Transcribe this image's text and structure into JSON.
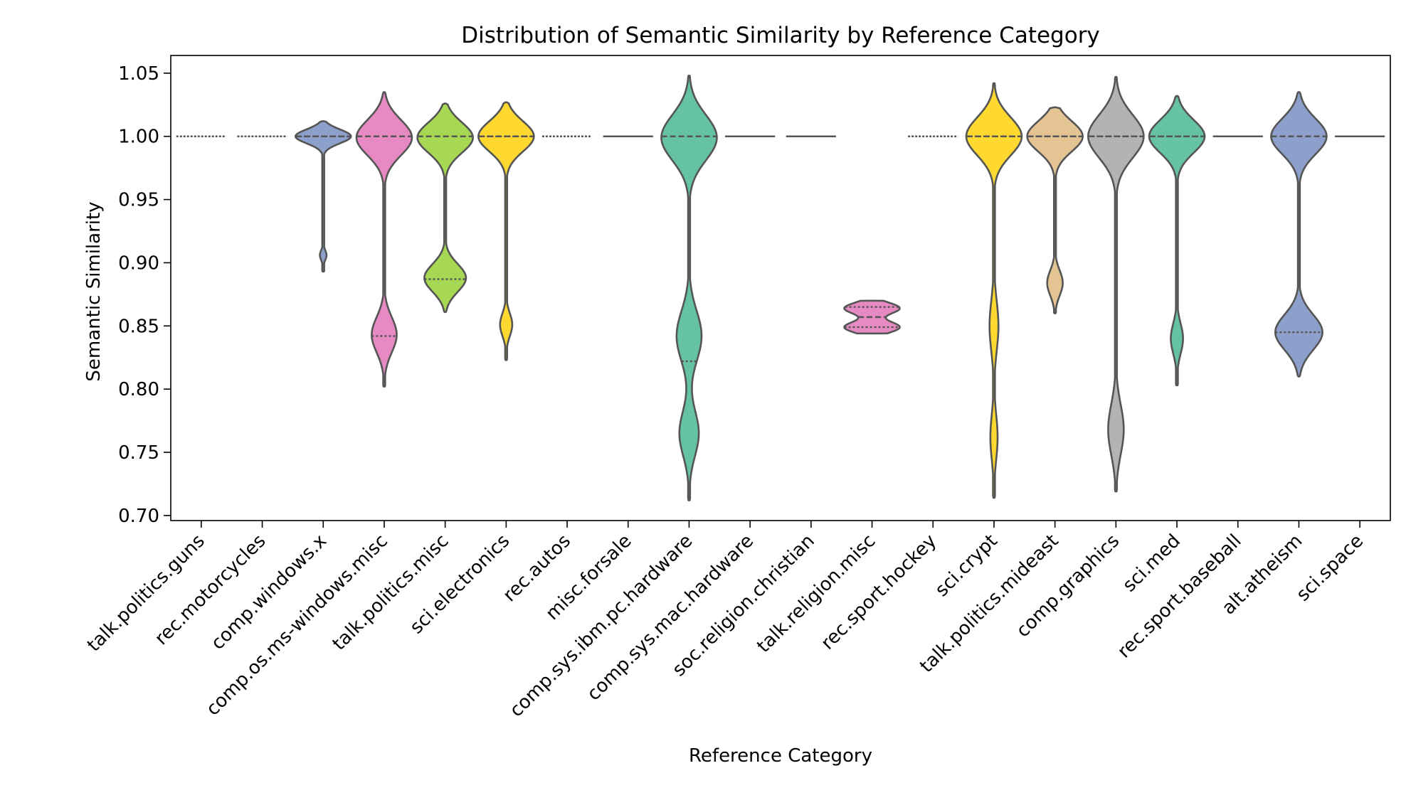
{
  "chart_data": {
    "type": "violin",
    "title": "Distribution of Semantic Similarity by Reference Category",
    "xlabel": "Reference Category",
    "ylabel": "Semantic Similarity",
    "ylim": [
      0.696,
      1.064
    ],
    "yticks": [
      "0.70",
      "0.75",
      "0.80",
      "0.85",
      "0.90",
      "0.95",
      "1.00",
      "1.05"
    ],
    "grid": false,
    "categories": [
      "talk.politics.guns",
      "rec.motorcycles",
      "comp.windows.x",
      "comp.os.ms-windows.misc",
      "talk.politics.misc",
      "sci.electronics",
      "rec.autos",
      "misc.forsale",
      "comp.sys.ibm.pc.hardware",
      "comp.sys.mac.hardware",
      "soc.religion.christian",
      "talk.religion.misc",
      "rec.sport.hockey",
      "sci.crypt",
      "talk.politics.mideast",
      "comp.graphics",
      "sci.med",
      "rec.sport.baseball",
      "alt.atheism",
      "sci.space"
    ],
    "colors": [
      "#66c2a5",
      "#fc8d62",
      "#8da0cb",
      "#e78ac3",
      "#a6d854",
      "#ffd92f",
      "#e5c494",
      "#b3b3b3",
      "#66c2a5",
      "#fc8d62",
      "#8da0cb",
      "#e78ac3",
      "#a6d854",
      "#ffd92f",
      "#e5c494",
      "#b3b3b3",
      "#66c2a5",
      "#fc8d62",
      "#8da0cb",
      "#e78ac3"
    ],
    "edge_color": "#555555",
    "distributions": [
      {
        "min": 1.0,
        "max": 1.0,
        "median": 1.0,
        "q1": 1.0,
        "q3": 1.0,
        "degenerate": true,
        "dotted": true
      },
      {
        "min": 1.0,
        "max": 1.0,
        "median": 1.0,
        "q1": 1.0,
        "q3": 1.0,
        "degenerate": true,
        "dotted": true
      },
      {
        "min": 0.893,
        "max": 1.012,
        "median": 1.0,
        "q1": 1.0,
        "q3": 1.0,
        "modes": [
          [
            1.0,
            1.0,
            0.0055
          ],
          [
            0.906,
            0.12,
            0.004
          ]
        ]
      },
      {
        "min": 0.802,
        "max": 1.035,
        "median": 1.0,
        "q1": 0.842,
        "q3": 1.0,
        "modes": [
          [
            0.999,
            1.0,
            0.014
          ],
          [
            0.843,
            0.45,
            0.014
          ]
        ]
      },
      {
        "min": 0.861,
        "max": 1.026,
        "median": 1.0,
        "q1": 0.887,
        "q3": 1.0,
        "modes": [
          [
            0.999,
            1.0,
            0.012
          ],
          [
            0.888,
            0.75,
            0.011
          ]
        ]
      },
      {
        "min": 0.823,
        "max": 1.027,
        "median": 1.0,
        "q1": 1.0,
        "q3": 1.0,
        "modes": [
          [
            1.0,
            1.0,
            0.012
          ],
          [
            0.851,
            0.22,
            0.009
          ]
        ]
      },
      {
        "min": 1.0,
        "max": 1.0,
        "median": 1.0,
        "q1": 1.0,
        "q3": 1.0,
        "degenerate": true,
        "dotted": true
      },
      {
        "min": 1.0,
        "max": 1.0,
        "median": 1.0,
        "q1": 1.0,
        "q3": 1.0,
        "degenerate": true
      },
      {
        "min": 0.712,
        "max": 1.048,
        "median": 1.0,
        "q1": 0.822,
        "q3": 1.0,
        "modes": [
          [
            0.999,
            1.0,
            0.018
          ],
          [
            0.842,
            0.45,
            0.02
          ],
          [
            0.765,
            0.35,
            0.018
          ]
        ]
      },
      {
        "min": 1.0,
        "max": 1.0,
        "median": 1.0,
        "q1": 1.0,
        "q3": 1.0,
        "degenerate": true
      },
      {
        "min": 1.0,
        "max": 1.0,
        "median": 1.0,
        "q1": 1.0,
        "q3": 1.0,
        "degenerate": true
      },
      {
        "min": 0.844,
        "max": 0.87,
        "median": 0.857,
        "q1": 0.849,
        "q3": 0.865,
        "modes": [
          [
            0.864,
            1.0,
            0.0045
          ],
          [
            0.849,
            1.0,
            0.0045
          ]
        ]
      },
      {
        "min": 1.0,
        "max": 1.0,
        "median": 1.0,
        "q1": 1.0,
        "q3": 1.0,
        "degenerate": true,
        "dotted": true
      },
      {
        "min": 0.714,
        "max": 1.042,
        "median": 1.0,
        "q1": 1.0,
        "q3": 1.0,
        "modes": [
          [
            1.0,
            1.0,
            0.015
          ],
          [
            0.85,
            0.16,
            0.02
          ],
          [
            0.762,
            0.13,
            0.018
          ]
        ]
      },
      {
        "min": 0.86,
        "max": 1.023,
        "median": 1.0,
        "q1": 1.0,
        "q3": 1.0,
        "modes": [
          [
            1.0,
            1.0,
            0.012
          ],
          [
            0.884,
            0.28,
            0.01
          ]
        ]
      },
      {
        "min": 0.719,
        "max": 1.047,
        "median": 1.0,
        "q1": 1.0,
        "q3": 1.0,
        "modes": [
          [
            1.0,
            1.0,
            0.017
          ],
          [
            0.768,
            0.28,
            0.02
          ]
        ]
      },
      {
        "min": 0.803,
        "max": 1.032,
        "median": 1.0,
        "q1": 1.0,
        "q3": 1.0,
        "modes": [
          [
            1.0,
            1.0,
            0.013
          ],
          [
            0.84,
            0.22,
            0.012
          ]
        ]
      },
      {
        "min": 1.0,
        "max": 1.0,
        "median": 1.0,
        "q1": 1.0,
        "q3": 1.0,
        "degenerate": true
      },
      {
        "min": 0.81,
        "max": 1.035,
        "median": 1.0,
        "q1": 0.845,
        "q3": 1.0,
        "modes": [
          [
            1.0,
            1.0,
            0.014
          ],
          [
            0.845,
            0.85,
            0.014
          ]
        ]
      },
      {
        "min": 1.0,
        "max": 1.0,
        "median": 1.0,
        "q1": 1.0,
        "q3": 1.0,
        "degenerate": true
      }
    ]
  }
}
